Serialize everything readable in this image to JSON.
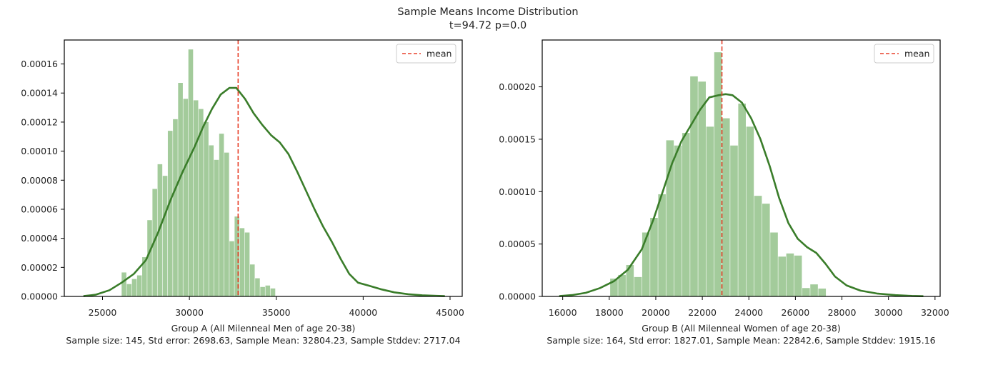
{
  "figure": {
    "title": "Sample Means Income Distribution",
    "subtitle": "t=94.72 p=0.0"
  },
  "style": {
    "bar_color": "#a3cb9b",
    "kde_color": "#3a7d2a",
    "mean_color": "#e8412b",
    "axis_color": "#000000"
  },
  "chart_data": [
    {
      "type": "bar",
      "panel": "left",
      "xlabel": "Group A (All Milenneal Men of age 20-38)",
      "xlabel2": "Sample size: 145, Std error: 2698.63, Sample Mean: 32804.23, Sample Stddev: 2717.04",
      "ylabel": "",
      "legend": {
        "label": "mean",
        "position": "top-right"
      },
      "xlim": [
        22800,
        45700
      ],
      "ylim": [
        0,
        0.0001765
      ],
      "xticks": [
        25000,
        30000,
        35000,
        40000,
        45000
      ],
      "yticks": [
        0,
        2e-05,
        4e-05,
        6e-05,
        8e-05,
        0.0001,
        0.00012,
        0.00014,
        0.00016
      ],
      "ytick_labels": [
        "0.00000",
        "0.00002",
        "0.00004",
        "0.00006",
        "0.00008",
        "0.00010",
        "0.00012",
        "0.00014",
        "0.00016"
      ],
      "mean": 32804.23,
      "bin_start": 26100,
      "bin_width": 295.5,
      "values": [
        1.65e-05,
        8.5e-06,
        1.2e-05,
        1.45e-05,
        2.7e-05,
        5.25e-05,
        7.4e-05,
        9.1e-05,
        8.3e-05,
        0.000114,
        0.000122,
        0.000147,
        0.000136,
        0.00017,
        0.000135,
        0.000129,
        0.00012,
        0.000104,
        9.4e-05,
        0.000112,
        9.9e-05,
        3.8e-05,
        5.5e-05,
        4.7e-05,
        4.4e-05,
        2.2e-05,
        1.25e-05,
        6.5e-06,
        7.5e-06,
        5.5e-06
      ],
      "kde_x": [
        23900,
        24600,
        25400,
        26100,
        26800,
        27500,
        28200,
        28900,
        29600,
        30300,
        30800,
        31300,
        31800,
        32300,
        32700,
        33200,
        33700,
        34200,
        34700,
        35200,
        35700,
        36200,
        36700,
        37200,
        37700,
        38200,
        38700,
        39200,
        39700,
        40300,
        41000,
        41800,
        42600,
        43400,
        44200,
        44700
      ],
      "kde_y": [
        2e-07,
        1.2e-06,
        4.3e-06,
        9.5e-06,
        1.55e-05,
        2.5e-05,
        4.4e-05,
        6.6e-05,
        8.55e-05,
        0.000103,
        0.000117,
        0.000129,
        0.000139,
        0.0001435,
        0.0001435,
        0.000136,
        0.000126,
        0.000118,
        0.000111,
        0.000106,
        9.8e-05,
        8.6e-05,
        7.3e-05,
        6e-05,
        4.8e-05,
        3.75e-05,
        2.6e-05,
        1.55e-05,
        9.5e-06,
        7.5e-06,
        5e-06,
        2.8e-06,
        1.5e-06,
        8e-07,
        4e-07,
        2e-07
      ]
    },
    {
      "type": "bar",
      "panel": "right",
      "xlabel": "Group B (All Milenneal Women of age 20-38)",
      "xlabel2": "Sample size: 164, Std error: 1827.01, Sample Mean: 22842.6, Sample Stddev: 1915.16",
      "ylabel": "",
      "legend": {
        "label": "mean",
        "position": "top-right"
      },
      "xlim": [
        15120,
        32220
      ],
      "ylim": [
        0,
        0.0002447
      ],
      "xticks": [
        16000,
        18000,
        20000,
        22000,
        24000,
        26000,
        28000,
        30000,
        32000
      ],
      "yticks": [
        0,
        5e-05,
        0.0001,
        0.00015,
        0.0002
      ],
      "ytick_labels": [
        "0.00000",
        "0.00005",
        "0.00010",
        "0.00015",
        "0.00020"
      ],
      "mean": 22842.6,
      "bin_start": 18040,
      "bin_width": 344,
      "values": [
        1.7e-05,
        2.05e-05,
        3e-05,
        1.85e-05,
        6.1e-05,
        7.5e-05,
        9.75e-05,
        0.000149,
        0.000144,
        0.000156,
        0.00021,
        0.000205,
        0.000162,
        0.000233,
        0.00017,
        0.000144,
        0.000184,
        0.000162,
        9.6e-05,
        8.85e-05,
        6.1e-05,
        3.8e-05,
        4.1e-05,
        3.9e-05,
        8e-06,
        1.15e-05,
        7.5e-06
      ],
      "kde_x": [
        15850,
        16400,
        17000,
        17600,
        18200,
        18800,
        19400,
        19900,
        20300,
        20700,
        21100,
        21500,
        21900,
        22300,
        22700,
        23000,
        23300,
        23700,
        24100,
        24500,
        24900,
        25300,
        25700,
        26100,
        26500,
        26900,
        27300,
        27700,
        28200,
        28800,
        29500,
        30300,
        31000,
        31500
      ],
      "kde_y": [
        3e-07,
        1.3e-06,
        3.5e-06,
        8e-06,
        1.45e-05,
        2.55e-05,
        4.5e-05,
        7.35e-05,
        0.0001,
        0.000127,
        0.000148,
        0.000163,
        0.000178,
        0.00019,
        0.000192,
        0.000193,
        0.000192,
        0.000185,
        0.00017,
        0.00015,
        0.000124,
        9.4e-05,
        7e-05,
        5.5e-05,
        4.7e-05,
        4.15e-05,
        3.1e-05,
        1.9e-05,
        1.05e-05,
        5.5e-06,
        2.8e-06,
        1.2e-06,
        5e-07,
        2e-07
      ]
    }
  ]
}
